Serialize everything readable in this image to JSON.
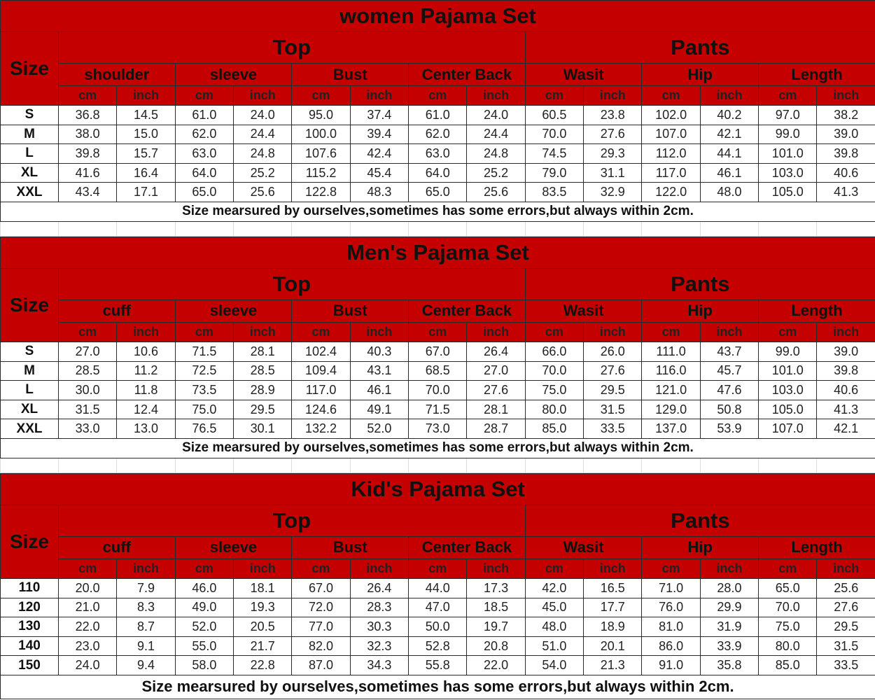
{
  "units": {
    "cm": "cm",
    "inch": "inch"
  },
  "sections": [
    {
      "title": "women Pajama Set",
      "size_label": "Size",
      "top_label": "Top",
      "pants_label": "Pants",
      "measures": [
        "shoulder",
        "sleeve",
        "Bust",
        "Center Back",
        "Wasit",
        "Hip",
        "Length"
      ],
      "rows": [
        {
          "size": "S",
          "values": [
            "36.8",
            "14.5",
            "61.0",
            "24.0",
            "95.0",
            "37.4",
            "61.0",
            "24.0",
            "60.5",
            "23.8",
            "102.0",
            "40.2",
            "97.0",
            "38.2"
          ]
        },
        {
          "size": "M",
          "values": [
            "38.0",
            "15.0",
            "62.0",
            "24.4",
            "100.0",
            "39.4",
            "62.0",
            "24.4",
            "70.0",
            "27.6",
            "107.0",
            "42.1",
            "99.0",
            "39.0"
          ]
        },
        {
          "size": "L",
          "values": [
            "39.8",
            "15.7",
            "63.0",
            "24.8",
            "107.6",
            "42.4",
            "63.0",
            "24.8",
            "74.5",
            "29.3",
            "112.0",
            "44.1",
            "101.0",
            "39.8"
          ]
        },
        {
          "size": "XL",
          "values": [
            "41.6",
            "16.4",
            "64.0",
            "25.2",
            "115.2",
            "45.4",
            "64.0",
            "25.2",
            "79.0",
            "31.1",
            "117.0",
            "46.1",
            "103.0",
            "40.6"
          ]
        },
        {
          "size": "XXL",
          "values": [
            "43.4",
            "17.1",
            "65.0",
            "25.6",
            "122.8",
            "48.3",
            "65.0",
            "25.6",
            "83.5",
            "32.9",
            "122.0",
            "48.0",
            "105.0",
            "41.3"
          ]
        }
      ],
      "note": "Size mearsured by ourselves,sometimes has some errors,but always within 2cm."
    },
    {
      "title": "Men's Pajama Set",
      "size_label": "Size",
      "top_label": "Top",
      "pants_label": "Pants",
      "measures": [
        "cuff",
        "sleeve",
        "Bust",
        "Center Back",
        "Wasit",
        "Hip",
        "Length"
      ],
      "rows": [
        {
          "size": "S",
          "values": [
            "27.0",
            "10.6",
            "71.5",
            "28.1",
            "102.4",
            "40.3",
            "67.0",
            "26.4",
            "66.0",
            "26.0",
            "111.0",
            "43.7",
            "99.0",
            "39.0"
          ]
        },
        {
          "size": "M",
          "values": [
            "28.5",
            "11.2",
            "72.5",
            "28.5",
            "109.4",
            "43.1",
            "68.5",
            "27.0",
            "70.0",
            "27.6",
            "116.0",
            "45.7",
            "101.0",
            "39.8"
          ]
        },
        {
          "size": "L",
          "values": [
            "30.0",
            "11.8",
            "73.5",
            "28.9",
            "117.0",
            "46.1",
            "70.0",
            "27.6",
            "75.0",
            "29.5",
            "121.0",
            "47.6",
            "103.0",
            "40.6"
          ]
        },
        {
          "size": "XL",
          "values": [
            "31.5",
            "12.4",
            "75.0",
            "29.5",
            "124.6",
            "49.1",
            "71.5",
            "28.1",
            "80.0",
            "31.5",
            "129.0",
            "50.8",
            "105.0",
            "41.3"
          ]
        },
        {
          "size": "XXL",
          "values": [
            "33.0",
            "13.0",
            "76.5",
            "30.1",
            "132.2",
            "52.0",
            "73.0",
            "28.7",
            "85.0",
            "33.5",
            "137.0",
            "53.9",
            "107.0",
            "42.1"
          ]
        }
      ],
      "note": "Size mearsured by ourselves,sometimes has some errors,but always within 2cm."
    },
    {
      "title": "Kid's Pajama Set",
      "size_label": "Size",
      "top_label": "Top",
      "pants_label": "Pants",
      "measures": [
        "cuff",
        "sleeve",
        "Bust",
        "Center Back",
        "Wasit",
        "Hip",
        "Length"
      ],
      "rows": [
        {
          "size": "110",
          "values": [
            "20.0",
            "7.9",
            "46.0",
            "18.1",
            "67.0",
            "26.4",
            "44.0",
            "17.3",
            "42.0",
            "16.5",
            "71.0",
            "28.0",
            "65.0",
            "25.6"
          ]
        },
        {
          "size": "120",
          "values": [
            "21.0",
            "8.3",
            "49.0",
            "19.3",
            "72.0",
            "28.3",
            "47.0",
            "18.5",
            "45.0",
            "17.7",
            "76.0",
            "29.9",
            "70.0",
            "27.6"
          ]
        },
        {
          "size": "130",
          "values": [
            "22.0",
            "8.7",
            "52.0",
            "20.5",
            "77.0",
            "30.3",
            "50.0",
            "19.7",
            "48.0",
            "18.9",
            "81.0",
            "31.9",
            "75.0",
            "29.5"
          ]
        },
        {
          "size": "140",
          "values": [
            "23.0",
            "9.1",
            "55.0",
            "21.7",
            "82.0",
            "32.3",
            "52.8",
            "20.8",
            "51.0",
            "20.1",
            "86.0",
            "33.9",
            "80.0",
            "31.5"
          ]
        },
        {
          "size": "150",
          "values": [
            "24.0",
            "9.4",
            "58.0",
            "22.8",
            "87.0",
            "34.3",
            "55.8",
            "22.0",
            "54.0",
            "21.3",
            "91.0",
            "35.8",
            "85.0",
            "33.5"
          ]
        }
      ],
      "note": "Size mearsured by ourselves,sometimes has some errors,but always within 2cm."
    }
  ]
}
